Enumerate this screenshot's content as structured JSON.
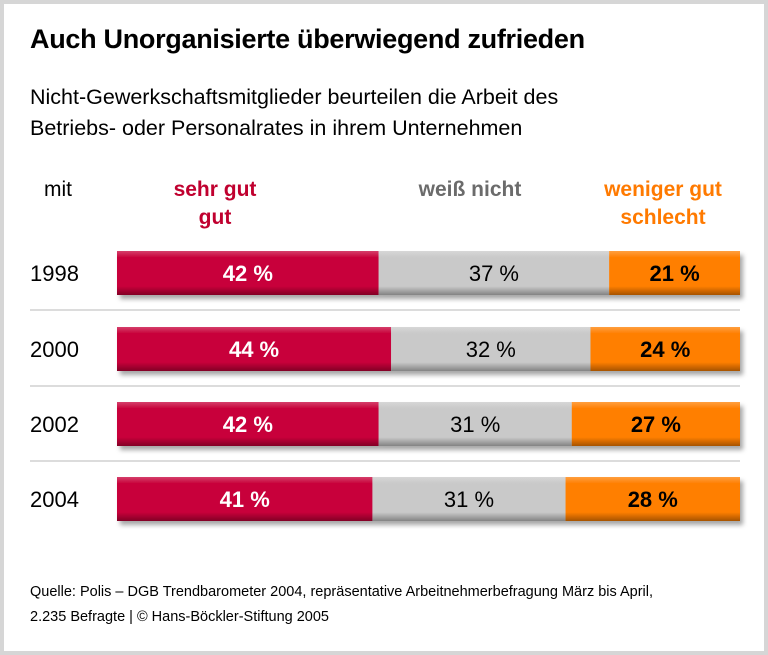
{
  "title": "Auch Unorganisierte überwiegend zufrieden",
  "subtitle_lines": [
    "Nicht-Gewerkschaftsmitglieder beurteilen die Arbeit des",
    "Betriebs- oder Personalrates in ihrem Unternehmen"
  ],
  "chart_data": {
    "type": "bar",
    "orientation": "horizontal",
    "stacked": true,
    "row_header": "mit",
    "categories": [
      "1998",
      "2000",
      "2002",
      "2004"
    ],
    "series": [
      {
        "name": "sehr gut\ngut",
        "name_lines": [
          "sehr gut",
          "gut"
        ],
        "color": "#c8003a",
        "label_color": "#c0002f",
        "values": [
          42,
          44,
          42,
          41
        ]
      },
      {
        "name": "weiß nicht",
        "name_lines": [
          "weiß nicht"
        ],
        "color": "#c9c9c9",
        "label_color": "#6b6b6b",
        "values": [
          37,
          32,
          31,
          31
        ]
      },
      {
        "name": "weniger gut\nschlecht",
        "name_lines": [
          "weniger gut",
          "schlecht"
        ],
        "color": "#ff7f00",
        "label_color": "#ff7a00",
        "values": [
          21,
          24,
          27,
          28
        ]
      }
    ],
    "value_suffix": "%",
    "xlim": [
      0,
      100
    ]
  },
  "footer_lines": [
    "Quelle: Polis – DGB Trendbarometer 2004, repräsentative Arbeitnehmerbefragung März bis April,",
    "2.235 Befragte | © Hans-Böckler-Stiftung 2005"
  ]
}
